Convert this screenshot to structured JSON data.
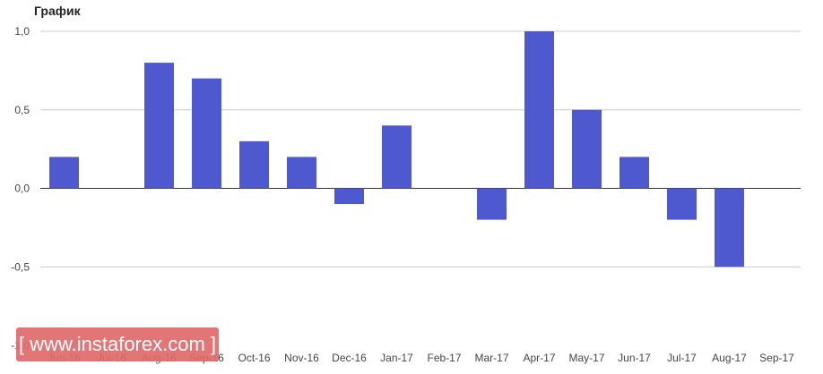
{
  "chart_data": {
    "type": "bar",
    "title": "График",
    "categories": [
      "Jun-16",
      "Jul-16",
      "Aug-16",
      "Sep-16",
      "Oct-16",
      "Nov-16",
      "Dec-16",
      "Jan-17",
      "Feb-17",
      "Mar-17",
      "Apr-17",
      "May-17",
      "Jun-17",
      "Jul-17",
      "Aug-17",
      "Sep-17"
    ],
    "values": [
      0.2,
      0,
      0.8,
      0.7,
      0.3,
      0.2,
      -0.1,
      0.4,
      0,
      -0.2,
      1.0,
      0.5,
      0.2,
      -0.2,
      -0.5,
      0
    ],
    "yticks": [
      "1,0",
      "0,5",
      "0,0",
      "-0,5",
      "-1,0"
    ],
    "ylim": [
      -1,
      1
    ],
    "grid": true,
    "color": "#4e58cf"
  },
  "watermark": "[ www.instaforex.com ]"
}
